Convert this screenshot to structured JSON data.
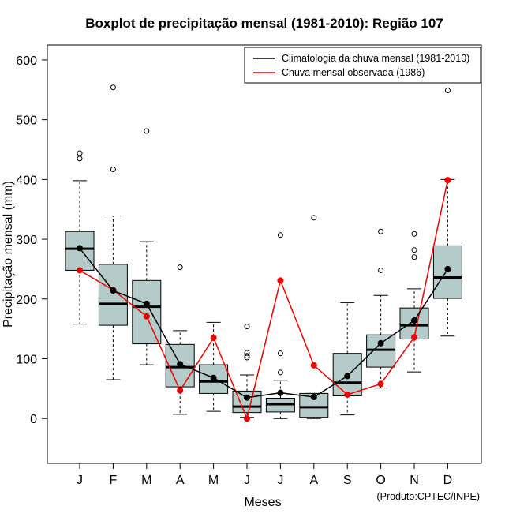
{
  "chart_data": {
    "type": "boxplot",
    "title": "Boxplot de precipitação mensal (1981-2010): Região 107",
    "xlabel": "Meses",
    "ylabel": "Precipitação mensal (mm)",
    "ylim": [
      -75,
      625
    ],
    "yticks": [
      0,
      100,
      200,
      300,
      400,
      500,
      600
    ],
    "categories": [
      "J",
      "F",
      "M",
      "A",
      "M",
      "J",
      "J",
      "A",
      "S",
      "O",
      "N",
      "D"
    ],
    "boxes": [
      {
        "whisker_low": 158,
        "q1": 248,
        "median": 284,
        "q3": 313,
        "whisker_high": 398,
        "outliers": [
          435,
          444
        ]
      },
      {
        "whisker_low": 65,
        "q1": 156,
        "median": 192,
        "q3": 258,
        "whisker_high": 339,
        "outliers": [
          417,
          554
        ]
      },
      {
        "whisker_low": 90,
        "q1": 125,
        "median": 187,
        "q3": 231,
        "whisker_high": 296,
        "outliers": [
          481
        ]
      },
      {
        "whisker_low": 7,
        "q1": 53,
        "median": 86,
        "q3": 124,
        "whisker_high": 147,
        "outliers": [
          253
        ]
      },
      {
        "whisker_low": 12,
        "q1": 42,
        "median": 62,
        "q3": 90,
        "whisker_high": 161,
        "outliers": []
      },
      {
        "whisker_low": 2,
        "q1": 10,
        "median": 20,
        "q3": 46,
        "whisker_high": 73,
        "outliers": [
          102,
          105,
          110,
          154
        ]
      },
      {
        "whisker_low": 0,
        "q1": 11,
        "median": 24,
        "q3": 34,
        "whisker_high": 64,
        "outliers": [
          77,
          109,
          307
        ]
      },
      {
        "whisker_low": 0,
        "q1": 2,
        "median": 19,
        "q3": 42,
        "whisker_high": 42,
        "outliers": [
          336
        ]
      },
      {
        "whisker_low": 6,
        "q1": 38,
        "median": 60,
        "q3": 109,
        "whisker_high": 194,
        "outliers": []
      },
      {
        "whisker_low": 51,
        "q1": 86,
        "median": 115,
        "q3": 140,
        "whisker_high": 206,
        "outliers": [
          248,
          313
        ]
      },
      {
        "whisker_low": 78,
        "q1": 133,
        "median": 156,
        "q3": 185,
        "whisker_high": 217,
        "outliers": [
          270,
          282,
          309
        ]
      },
      {
        "whisker_low": 138,
        "q1": 201,
        "median": 236,
        "q3": 289,
        "whisker_high": 400,
        "outliers": [
          549
        ]
      }
    ],
    "series": [
      {
        "name": "Climatologia da chuva mensal (1981-2010)",
        "color": "#000000",
        "values": [
          285,
          214,
          192,
          91,
          68,
          35,
          43,
          36,
          71,
          126,
          164,
          250
        ]
      },
      {
        "name": "Chuva mensal observada (1986)",
        "color": "#ee0000",
        "values": [
          248,
          215,
          171,
          47,
          135,
          0,
          231,
          89,
          40,
          58,
          136,
          399
        ]
      }
    ],
    "box_fill": "#b4cbca",
    "legend_position": "top-right",
    "credit": "(Produto:CPTEC/INPE)"
  }
}
